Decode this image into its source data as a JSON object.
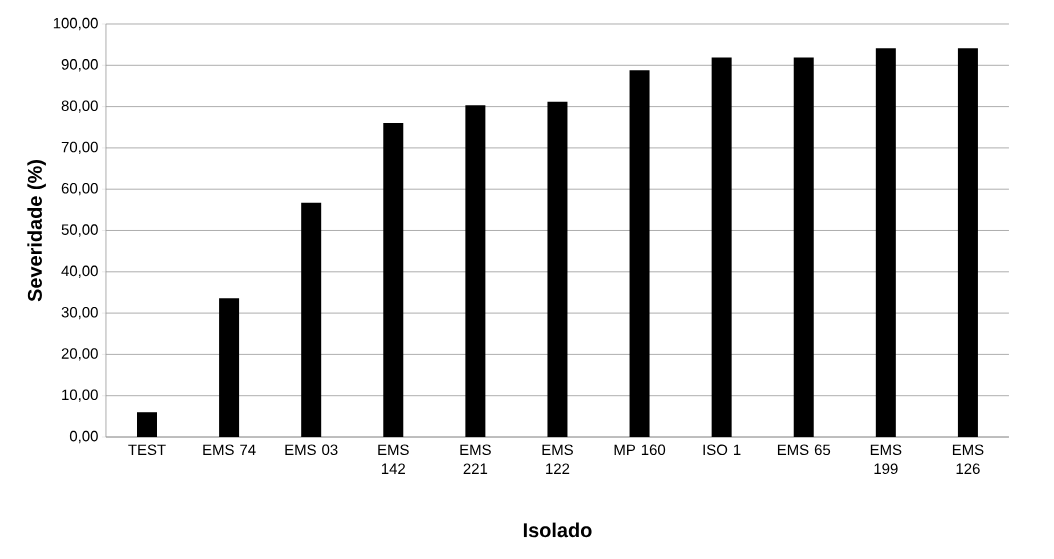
{
  "chart_data": {
    "type": "bar",
    "xlabel": "Isolado",
    "ylabel": "Severidade (%)",
    "categories": [
      "TEST",
      "EMS 74",
      "EMS 03",
      "EMS 142",
      "EMS 221",
      "EMS 122",
      "MP 160",
      "ISO 1",
      "EMS 65",
      "EMS 199",
      "EMS 126"
    ],
    "values": [
      6.0,
      33.6,
      56.7,
      76.0,
      80.3,
      81.2,
      88.8,
      91.9,
      91.9,
      94.1,
      94.1
    ],
    "color": "#000000",
    "ylim": [
      0,
      100
    ],
    "yticks": [
      {
        "value": 0,
        "label": "0,00"
      },
      {
        "value": 10,
        "label": "10,00"
      },
      {
        "value": 20,
        "label": "20,00"
      },
      {
        "value": 30,
        "label": "30,00"
      },
      {
        "value": 40,
        "label": "40,00"
      },
      {
        "value": 50,
        "label": "50,00"
      },
      {
        "value": 60,
        "label": "60,00"
      },
      {
        "value": 70,
        "label": "70,00"
      },
      {
        "value": 80,
        "label": "80,00"
      },
      {
        "value": 90,
        "label": "90,00"
      },
      {
        "value": 100,
        "label": "100,00"
      }
    ],
    "grid": "y"
  }
}
